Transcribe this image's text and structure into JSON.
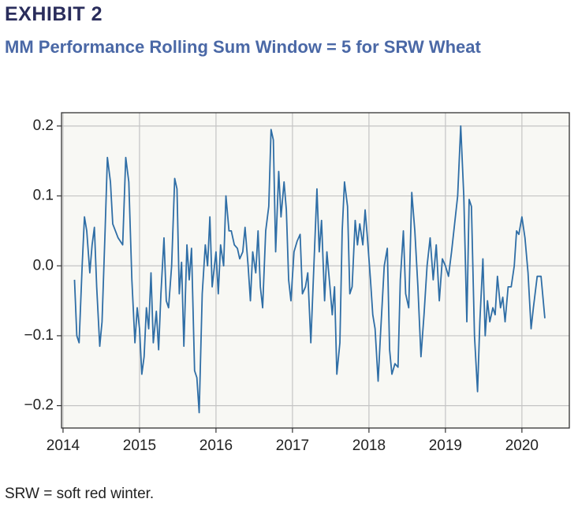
{
  "chart_data": {
    "type": "line",
    "title": "EXHIBIT 2",
    "subtitle": "MM Performance Rolling Sum Window = 5 for SRW Wheat",
    "note": "SRW = soft red winter.",
    "xlim": [
      2013.98,
      2020.62
    ],
    "xticks": [
      2014,
      2015,
      2016,
      2017,
      2018,
      2019,
      2020
    ],
    "ylim": [
      -0.232,
      0.219
    ],
    "yticks": [
      {
        "value": -0.2,
        "label": "−0.2"
      },
      {
        "value": -0.1,
        "label": "−0.1"
      },
      {
        "value": 0,
        "label": "0.0"
      },
      0.1,
      0.2
    ],
    "grid": true,
    "color": "#2f6ea6",
    "x": [
      2014.15,
      2014.18,
      2014.21,
      2014.25,
      2014.28,
      2014.31,
      2014.35,
      2014.38,
      2014.41,
      2014.44,
      2014.48,
      2014.51,
      2014.55,
      2014.58,
      2014.62,
      2014.65,
      2014.72,
      2014.78,
      2014.82,
      2014.86,
      2014.9,
      2014.94,
      2014.97,
      2015.0,
      2015.03,
      2015.06,
      2015.09,
      2015.12,
      2015.15,
      2015.18,
      2015.22,
      2015.25,
      2015.28,
      2015.32,
      2015.35,
      2015.38,
      2015.42,
      2015.46,
      2015.49,
      2015.52,
      2015.55,
      2015.58,
      2015.62,
      2015.65,
      2015.68,
      2015.72,
      2015.75,
      2015.78,
      2015.82,
      2015.86,
      2015.89,
      2015.92,
      2015.95,
      2016.0,
      2016.03,
      2016.06,
      2016.1,
      2016.13,
      2016.17,
      2016.2,
      2016.24,
      2016.28,
      2016.31,
      2016.35,
      2016.38,
      2016.42,
      2016.45,
      2016.48,
      2016.52,
      2016.55,
      2016.58,
      2016.61,
      2016.65,
      2016.69,
      2016.72,
      2016.75,
      2016.78,
      2016.82,
      2016.85,
      2016.89,
      2016.92,
      2016.95,
      2016.98,
      2017.02,
      2017.06,
      2017.1,
      2017.13,
      2017.17,
      2017.2,
      2017.24,
      2017.28,
      2017.32,
      2017.35,
      2017.38,
      2017.42,
      2017.45,
      2017.49,
      2017.52,
      2017.55,
      2017.58,
      2017.62,
      2017.65,
      2017.68,
      2017.72,
      2017.75,
      2017.78,
      2017.82,
      2017.85,
      2017.88,
      2017.92,
      2017.95,
      2017.98,
      2018.02,
      2018.05,
      2018.08,
      2018.12,
      2018.15,
      2018.2,
      2018.24,
      2018.27,
      2018.3,
      2018.34,
      2018.38,
      2018.41,
      2018.45,
      2018.48,
      2018.52,
      2018.56,
      2018.6,
      2018.64,
      2018.68,
      2018.72,
      2018.76,
      2018.8,
      2018.84,
      2018.88,
      2018.92,
      2018.96,
      2019.0,
      2019.04,
      2019.08,
      2019.12,
      2019.16,
      2019.2,
      2019.24,
      2019.28,
      2019.31,
      2019.34,
      2019.38,
      2019.42,
      2019.45,
      2019.49,
      2019.52,
      2019.55,
      2019.58,
      2019.62,
      2019.65,
      2019.68,
      2019.72,
      2019.75,
      2019.78,
      2019.82,
      2019.86,
      2019.9,
      2019.93,
      2019.96,
      2020.0,
      2020.04,
      2020.08,
      2020.12,
      2020.15,
      2020.2,
      2020.25,
      2020.3
    ],
    "values": [
      -0.02,
      -0.1,
      -0.11,
      0.0,
      0.07,
      0.05,
      -0.01,
      0.03,
      0.055,
      -0.03,
      -0.115,
      -0.08,
      0.05,
      0.155,
      0.12,
      0.06,
      0.04,
      0.03,
      0.155,
      0.12,
      -0.02,
      -0.11,
      -0.06,
      -0.09,
      -0.155,
      -0.13,
      -0.06,
      -0.09,
      -0.01,
      -0.11,
      -0.065,
      -0.12,
      -0.04,
      0.04,
      -0.05,
      -0.06,
      0.0,
      0.125,
      0.11,
      -0.04,
      0.005,
      -0.115,
      0.03,
      -0.02,
      0.025,
      -0.15,
      -0.16,
      -0.21,
      -0.04,
      0.03,
      0.0,
      0.07,
      -0.03,
      0.02,
      -0.04,
      0.03,
      0.0,
      0.1,
      0.05,
      0.05,
      0.03,
      0.025,
      0.01,
      0.02,
      0.055,
      0.0,
      -0.05,
      0.02,
      -0.01,
      0.05,
      -0.03,
      -0.06,
      0.05,
      0.085,
      0.195,
      0.18,
      0.02,
      0.135,
      0.07,
      0.12,
      0.08,
      -0.02,
      -0.05,
      0.02,
      0.035,
      0.045,
      -0.04,
      -0.03,
      -0.01,
      -0.11,
      0.0,
      0.11,
      0.02,
      0.065,
      -0.05,
      0.02,
      -0.03,
      -0.07,
      -0.03,
      -0.155,
      -0.11,
      0.05,
      0.12,
      0.085,
      -0.04,
      -0.03,
      0.065,
      0.03,
      0.06,
      0.03,
      0.08,
      0.04,
      -0.02,
      -0.07,
      -0.09,
      -0.165,
      -0.1,
      0.0,
      0.025,
      -0.12,
      -0.155,
      -0.14,
      -0.145,
      -0.02,
      0.05,
      -0.04,
      -0.06,
      0.105,
      0.05,
      -0.03,
      -0.13,
      -0.07,
      0.0,
      0.04,
      -0.02,
      0.03,
      -0.05,
      0.01,
      0.0,
      -0.015,
      0.02,
      0.06,
      0.1,
      0.2,
      0.1,
      -0.08,
      0.095,
      0.085,
      -0.1,
      -0.18,
      -0.08,
      0.01,
      -0.1,
      -0.05,
      -0.08,
      -0.06,
      -0.07,
      -0.015,
      -0.06,
      -0.045,
      -0.08,
      -0.03,
      -0.03,
      0.0,
      0.05,
      0.045,
      0.07,
      0.04,
      -0.01,
      -0.09,
      -0.06,
      -0.015,
      -0.015,
      -0.075
    ]
  }
}
